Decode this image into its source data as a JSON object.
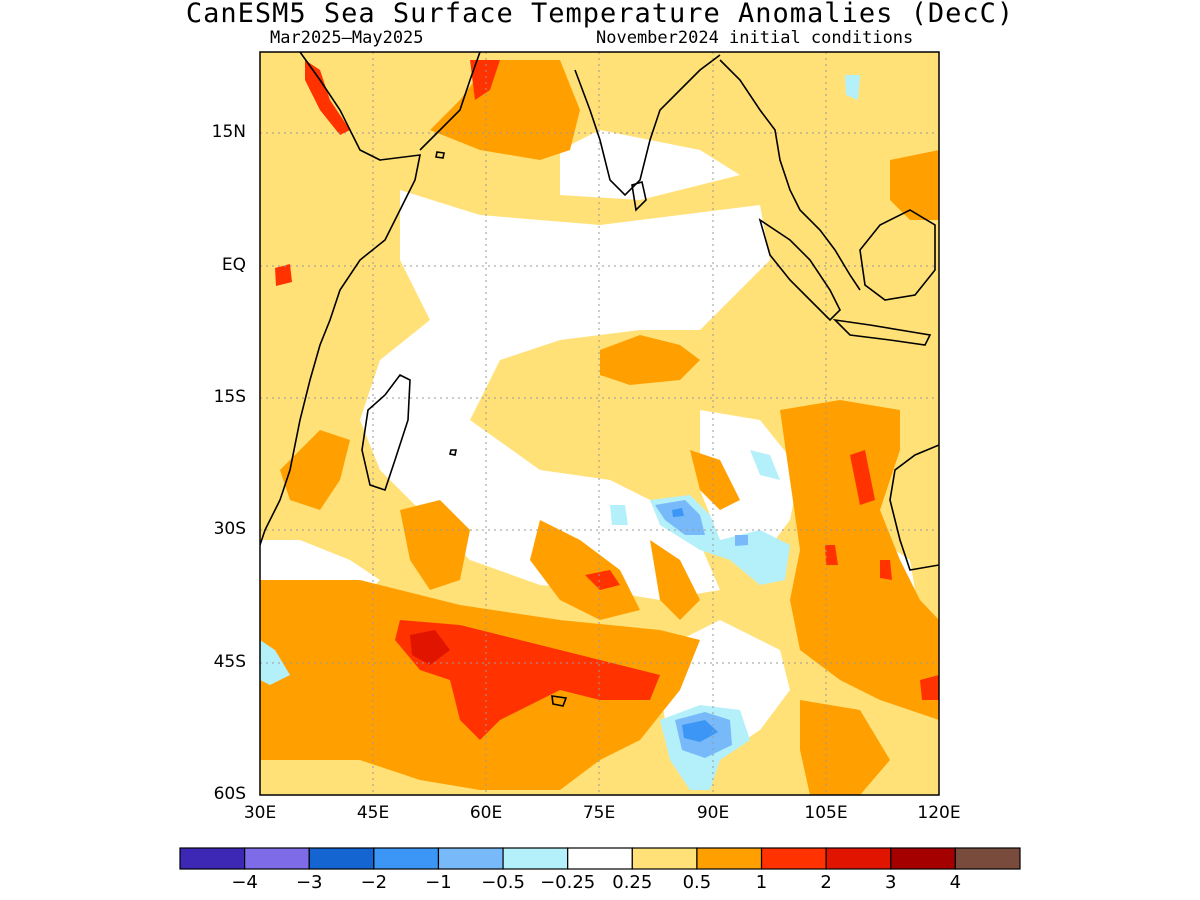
{
  "title": "CanESM5 Sea Surface Temperature Anomalies (DecC)",
  "subtitle_left": "Mar2025–May2025",
  "subtitle_right": "November2024 initial conditions",
  "lat_labels": [
    "15N",
    "EQ",
    "15S",
    "30S",
    "45S",
    "60S"
  ],
  "lon_labels": [
    "30E",
    "45E",
    "60E",
    "75E",
    "90E",
    "105E",
    "120E"
  ],
  "colorbar": {
    "labels": [
      "−4",
      "−3",
      "−2",
      "−1",
      "−0.5",
      "−0.25",
      "0.25",
      "0.5",
      "1",
      "2",
      "3",
      "4"
    ],
    "colors": [
      "#3c28b4",
      "#7d6be8",
      "#1464d2",
      "#3c96f5",
      "#78b9fa",
      "#b4f0fa",
      "#ffffff",
      "#ffe178",
      "#ffa000",
      "#ff3200",
      "#e11400",
      "#a50000",
      "#784b3c"
    ]
  },
  "colors": {
    "light_yellow": "#ffe178",
    "orange": "#ffa000",
    "red": "#ff3200",
    "dark_red": "#e11400",
    "light_cyan": "#b4f0fa",
    "light_blue": "#78b9fa",
    "blue": "#3c96f5"
  }
}
